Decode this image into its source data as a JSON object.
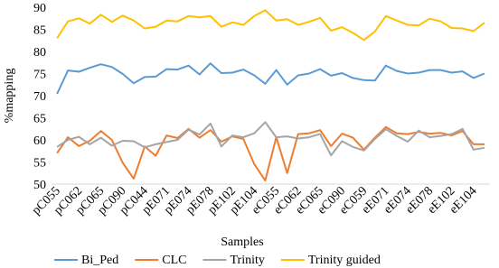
{
  "chart_data": {
    "type": "line",
    "x_label": "Samples",
    "y_label": "%mapping",
    "categories": [
      "pC055",
      null,
      "pC062",
      null,
      "pC065",
      null,
      "pC090",
      null,
      "pC044",
      null,
      "pE071",
      null,
      "pE074",
      null,
      "pE078",
      null,
      "pE102",
      null,
      "pE104",
      null,
      "eC055",
      null,
      "eC062",
      null,
      "eC065",
      null,
      "eC090",
      null,
      "eC059",
      null,
      "eE071",
      null,
      "eE074",
      null,
      "eE078",
      null,
      "eE102",
      null,
      "eE104",
      null
    ],
    "series": [
      {
        "name": "Bi_Ped",
        "color": "#5b9bd5",
        "values": [
          70.4,
          75.7,
          75.4,
          76.3,
          77.1,
          76.5,
          74.9,
          72.8,
          74.2,
          74.3,
          76,
          75.9,
          76.8,
          74.8,
          77.3,
          75.1,
          75.2,
          75.9,
          74.6,
          72.7,
          75.8,
          72.5,
          74.6,
          75,
          76,
          74.5,
          75.1,
          74,
          73.5,
          73.4,
          76.8,
          75.6,
          75,
          75.2,
          75.8,
          75.8,
          75.2,
          75.5,
          74,
          75
        ]
      },
      {
        "name": "CLC",
        "color": "#ed7d31",
        "values": [
          57,
          60.6,
          58.6,
          59.8,
          62,
          60,
          54.8,
          51.2,
          58.5,
          56.4,
          61,
          60.4,
          62.5,
          60.5,
          62.2,
          59.6,
          60.8,
          60.2,
          54.5,
          50.8,
          60.6,
          52.5,
          61.3,
          61.5,
          62.2,
          58.6,
          61.4,
          60.5,
          57.8,
          60.5,
          62.9,
          61.5,
          61.3,
          61.8,
          61.4,
          61.6,
          61,
          62,
          59,
          59
        ]
      },
      {
        "name": "Trinity",
        "color": "#a5a5a5",
        "values": [
          58.4,
          60,
          60.7,
          59,
          60.5,
          58.7,
          59.8,
          59.7,
          58.3,
          59,
          59.5,
          60,
          62.3,
          61.2,
          63.7,
          58.5,
          61,
          60.6,
          61.5,
          64,
          60.6,
          60.8,
          60.3,
          60.6,
          61.3,
          56.5,
          59.7,
          58.4,
          57.6,
          60.2,
          62.4,
          60.9,
          59.6,
          62.1,
          60.6,
          60.9,
          61.3,
          62.5,
          57.8,
          58.2
        ]
      },
      {
        "name": "Trinity guided",
        "color": "#ffc000",
        "values": [
          83,
          86.8,
          87.5,
          86.3,
          88.3,
          86.7,
          88.1,
          87,
          85.2,
          85.6,
          87,
          86.8,
          88,
          87.7,
          88,
          85.6,
          86.6,
          86,
          88,
          89.3,
          87,
          87.3,
          86,
          86.7,
          87.6,
          84.7,
          85.5,
          84.2,
          82.6,
          84.5,
          88,
          87,
          86,
          85.9,
          87.4,
          86.8,
          85.3,
          85.2,
          84.6,
          86.5
        ]
      }
    ],
    "ylim": [
      50,
      90
    ],
    "yticks": [
      50,
      55,
      60,
      65,
      70,
      75,
      80,
      85,
      90
    ],
    "grid": false,
    "legend": "bottom"
  }
}
